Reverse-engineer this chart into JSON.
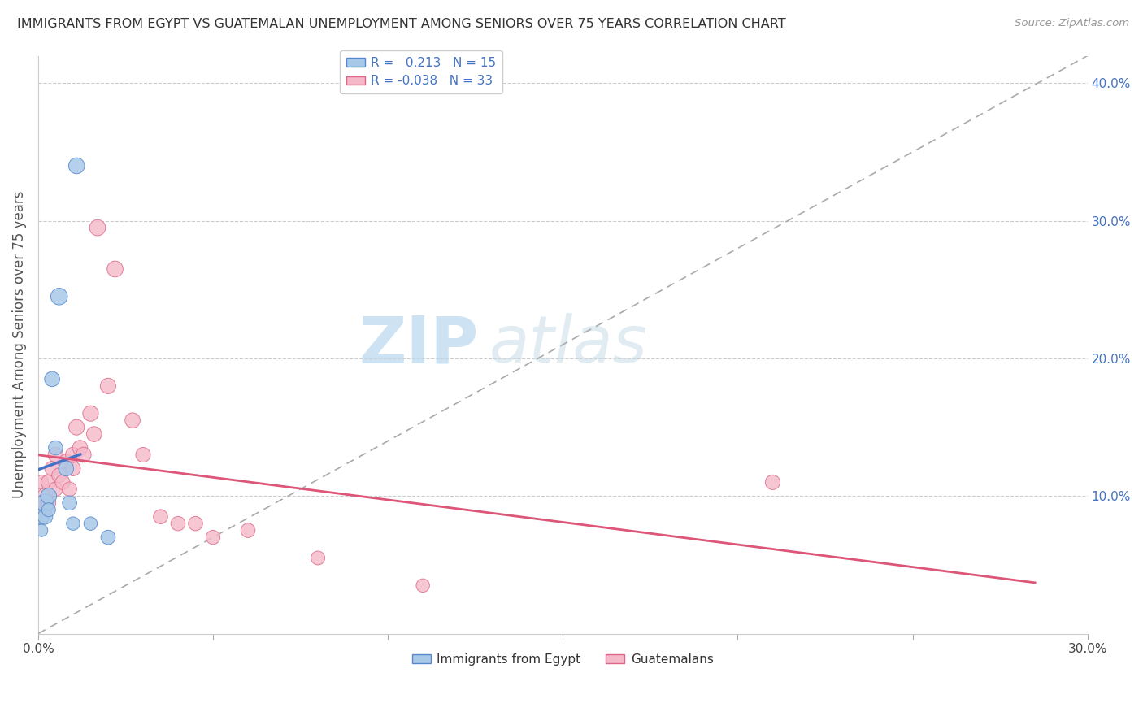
{
  "title": "IMMIGRANTS FROM EGYPT VS GUATEMALAN UNEMPLOYMENT AMONG SENIORS OVER 75 YEARS CORRELATION CHART",
  "source": "Source: ZipAtlas.com",
  "ylabel": "Unemployment Among Seniors over 75 years",
  "xlim": [
    0.0,
    0.3
  ],
  "ylim": [
    0.0,
    0.42
  ],
  "xtick_positions": [
    0.0,
    0.05,
    0.1,
    0.15,
    0.2,
    0.25,
    0.3
  ],
  "xtick_labels": [
    "0.0%",
    "",
    "",
    "",
    "",
    "",
    "30.0%"
  ],
  "ytick_right_labels": [
    "10.0%",
    "20.0%",
    "30.0%",
    "40.0%"
  ],
  "ytick_right_values": [
    0.1,
    0.2,
    0.3,
    0.4
  ],
  "r_egypt": 0.213,
  "n_egypt": 15,
  "r_guatemalan": -0.038,
  "n_guatemalan": 33,
  "color_egypt_fill": "#a8c8e8",
  "color_guatemalan_fill": "#f5b8c8",
  "color_egypt_edge": "#5588cc",
  "color_guatemalan_edge": "#dd6688",
  "color_egypt_line": "#4472C4",
  "color_guatemalan_line": "#dd5577",
  "color_diagonal": "#aaaaaa",
  "watermark_zip": "ZIP",
  "watermark_atlas": "atlas",
  "egypt_x": [
    0.001,
    0.001,
    0.002,
    0.002,
    0.003,
    0.003,
    0.004,
    0.005,
    0.006,
    0.008,
    0.009,
    0.01,
    0.011,
    0.015,
    0.02
  ],
  "egypt_y": [
    0.085,
    0.075,
    0.095,
    0.085,
    0.1,
    0.09,
    0.185,
    0.135,
    0.245,
    0.12,
    0.095,
    0.08,
    0.34,
    0.08,
    0.07
  ],
  "egypt_size": [
    180,
    120,
    250,
    180,
    200,
    150,
    180,
    160,
    220,
    180,
    160,
    140,
    200,
    140,
    160
  ],
  "guatemala_x": [
    0.001,
    0.001,
    0.002,
    0.002,
    0.003,
    0.003,
    0.004,
    0.005,
    0.005,
    0.006,
    0.007,
    0.008,
    0.009,
    0.01,
    0.01,
    0.011,
    0.012,
    0.013,
    0.015,
    0.016,
    0.017,
    0.02,
    0.022,
    0.027,
    0.03,
    0.035,
    0.04,
    0.045,
    0.05,
    0.06,
    0.08,
    0.11,
    0.21
  ],
  "guatemala_y": [
    0.095,
    0.11,
    0.1,
    0.09,
    0.11,
    0.095,
    0.12,
    0.13,
    0.105,
    0.115,
    0.11,
    0.125,
    0.105,
    0.12,
    0.13,
    0.15,
    0.135,
    0.13,
    0.16,
    0.145,
    0.295,
    0.18,
    0.265,
    0.155,
    0.13,
    0.085,
    0.08,
    0.08,
    0.07,
    0.075,
    0.055,
    0.035,
    0.11
  ],
  "guatemala_size": [
    180,
    160,
    200,
    160,
    180,
    160,
    170,
    180,
    160,
    170,
    170,
    180,
    160,
    170,
    180,
    190,
    180,
    180,
    190,
    180,
    200,
    190,
    200,
    180,
    170,
    160,
    160,
    160,
    155,
    160,
    150,
    140,
    170
  ]
}
